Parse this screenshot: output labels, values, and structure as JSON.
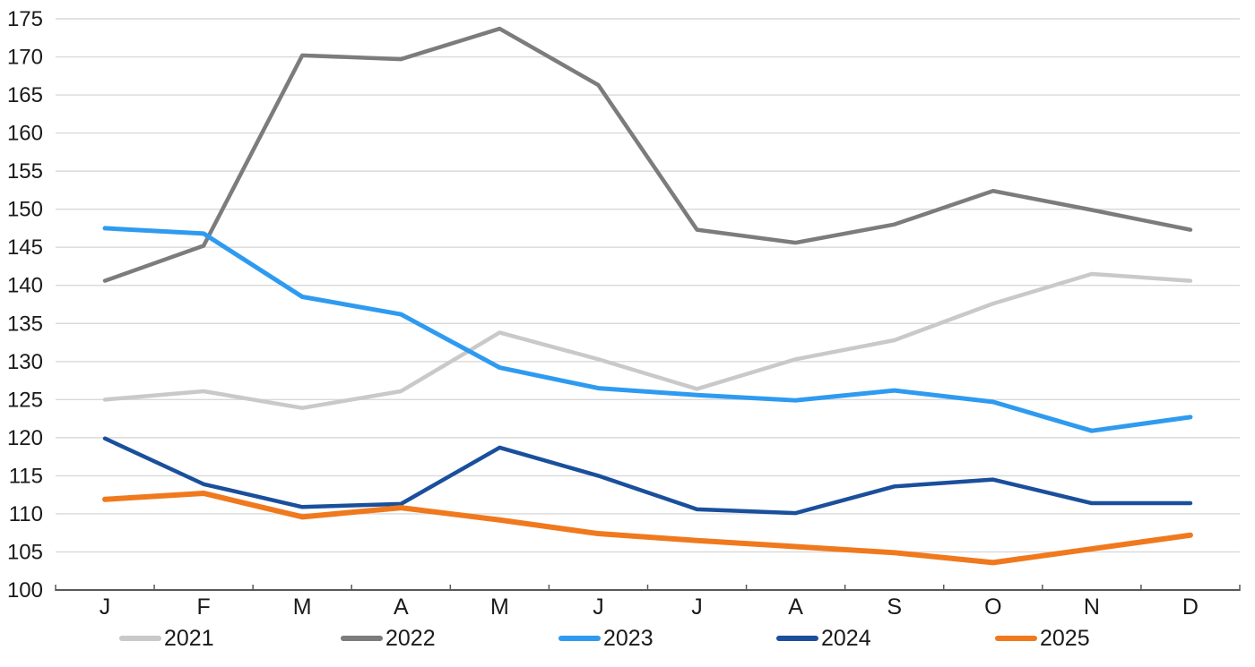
{
  "chart_data": {
    "type": "line",
    "title": "",
    "xlabel": "",
    "ylabel": "",
    "x": [
      "J",
      "F",
      "M",
      "A",
      "M",
      "J",
      "J",
      "A",
      "S",
      "O",
      "N",
      "D"
    ],
    "ylim": [
      100,
      175
    ],
    "ytick_step": 5,
    "grid": true,
    "legend_position": "bottom",
    "axis_color": "#595959",
    "gridline_color": "#d9d9d9",
    "tick_label_color": "#1a1a1a",
    "series": [
      {
        "name": "2021",
        "color": "#c9c9c9",
        "width": 4.5,
        "values": [
          125.0,
          126.1,
          123.9,
          126.1,
          133.8,
          130.3,
          126.4,
          130.3,
          132.8,
          137.6,
          141.5,
          140.6
        ]
      },
      {
        "name": "2022",
        "color": "#7c7c7c",
        "width": 4.5,
        "values": [
          140.6,
          145.2,
          170.2,
          169.7,
          173.7,
          166.3,
          147.3,
          145.6,
          148.0,
          152.4,
          149.9,
          147.3
        ]
      },
      {
        "name": "2023",
        "color": "#2e9bf0",
        "width": 5,
        "values": [
          147.5,
          146.8,
          138.5,
          136.2,
          129.2,
          126.5,
          125.6,
          124.9,
          126.2,
          124.7,
          120.9,
          122.7
        ]
      },
      {
        "name": "2024",
        "color": "#1a4f9c",
        "width": 4.5,
        "values": [
          119.9,
          113.9,
          110.9,
          111.3,
          118.7,
          115.0,
          110.6,
          110.1,
          113.6,
          114.5,
          111.4,
          111.4
        ]
      },
      {
        "name": "2025",
        "color": "#f0791e",
        "width": 6,
        "values": [
          111.9,
          112.7,
          109.6,
          110.8,
          109.2,
          107.4,
          106.5,
          105.7,
          104.9,
          103.6,
          105.4,
          107.2
        ]
      }
    ]
  }
}
